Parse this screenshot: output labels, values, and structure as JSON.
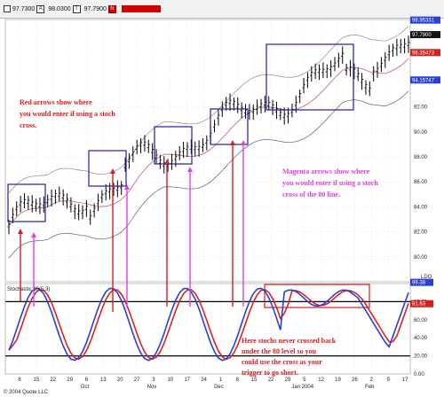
{
  "toolbar": {
    "items": [
      {
        "value": "97.7300",
        "tag": "A"
      },
      {
        "value": "98.0300",
        "tag": "T"
      },
      {
        "value": "97.7900",
        "tag": "N"
      }
    ]
  },
  "chart_data": [
    {
      "type": "bar",
      "panel": "price",
      "description_labels_right": [
        "98.95331",
        "97.7900",
        "96.35473",
        "94.15747"
      ],
      "right_axis_ticks": [
        92,
        90,
        88,
        86,
        84,
        82,
        80
      ],
      "right_axis_label": "LDO",
      "ylim": [
        78,
        99
      ],
      "bollinger_bands": true,
      "annotations": {
        "red": [
          "Red arrows show where",
          "you would enter if using a stoch",
          "cross."
        ],
        "magenta": [
          "Magenta arrows show where",
          "you would enter if using a stoch",
          "cross of the 80 line."
        ]
      },
      "boxes": 6
    },
    {
      "type": "line",
      "panel": "stochastic",
      "title": "Stochastic 10(5,3)",
      "right_axis_ticks": [
        100,
        80,
        60,
        40,
        20,
        0
      ],
      "right_axis_labels": [
        "100.00",
        "80.00",
        "60.00",
        "40.00",
        "20.00",
        "0.00"
      ],
      "value_labels": [
        "99.38",
        "81.63"
      ],
      "ylim": [
        0,
        100
      ],
      "series": [
        {
          "name": "%K",
          "color": "#2a3fd6"
        },
        {
          "name": "%D",
          "color": "#e02020"
        }
      ],
      "reference_lines": [
        80,
        20
      ],
      "annotation": [
        "Here stochs never crossed back",
        "under the 80 level so you",
        "could use the cross as your",
        "trigger to go short."
      ]
    }
  ],
  "x_axis": {
    "ticks": [
      "8",
      "15",
      "22",
      "29",
      "6",
      "13",
      "20",
      "27",
      "3",
      "10",
      "17",
      "24",
      "1",
      "8",
      "15",
      "22",
      "29",
      "5",
      "12",
      "19",
      "26",
      "2",
      "9",
      "17"
    ],
    "months": [
      "Oct",
      "Nov",
      "Dec",
      "Jan 2004",
      "Feb"
    ],
    "copyright": "© 2004 Quote LLC"
  }
}
